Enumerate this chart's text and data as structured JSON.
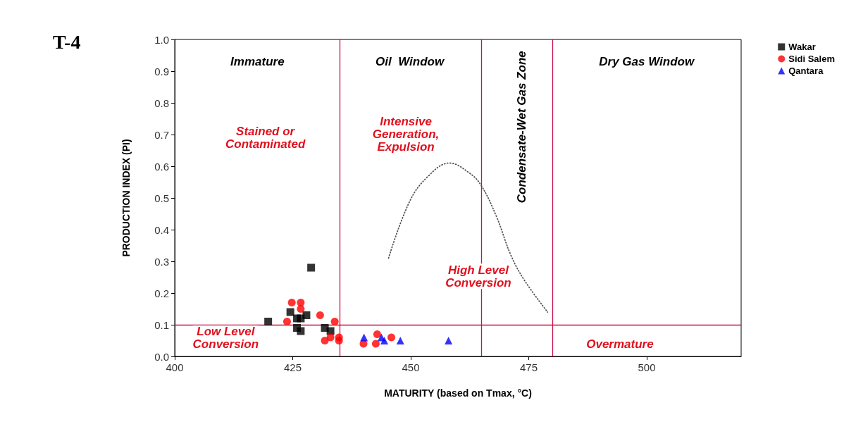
{
  "chart_data": {
    "type": "scatter",
    "title": "T-4",
    "xlabel": "MATURITY (based on Tmax, °C)",
    "ylabel": "PRODUCTION INDEX (PI)",
    "xlim": [
      400,
      520
    ],
    "xticks": [
      400,
      425,
      450,
      475,
      500
    ],
    "ylim": [
      0,
      1
    ],
    "yticks": [
      {
        "value": 0,
        "label": "0.0"
      },
      0.1,
      0.2,
      0.3,
      0.4,
      0.5,
      0.6,
      0.7,
      0.8,
      0.9,
      {
        "value": 1,
        "label": "1.0"
      }
    ],
    "grid": false,
    "legend": "top right",
    "series": [
      {
        "name": "Wakar",
        "color": "#000000",
        "marker": "square",
        "x": [
          428.9,
          419.8,
          424.5,
          425.9,
          426.7,
          427.9,
          425.9,
          426.7,
          431.8,
          433.0
        ],
        "values": [
          0.28,
          0.11,
          0.14,
          0.12,
          0.12,
          0.13,
          0.09,
          0.08,
          0.09,
          0.08
        ]
      },
      {
        "name": "Sidi Salem",
        "color": "#ff0000",
        "marker": "circle",
        "x": [
          424.8,
          426.7,
          426.7,
          423.8,
          430.8,
          433.9,
          431.8,
          433.0,
          434.8,
          434.8,
          440.0,
          442.9,
          442.6,
          445.9
        ],
        "values": [
          0.17,
          0.17,
          0.15,
          0.11,
          0.13,
          0.11,
          0.05,
          0.06,
          0.06,
          0.05,
          0.04,
          0.07,
          0.04,
          0.06
        ]
      },
      {
        "name": "Qantara",
        "color": "#0000ff",
        "marker": "triangle",
        "x": [
          440.1,
          443.8,
          444.4,
          447.8,
          458.0
        ],
        "values": [
          0.06,
          0.06,
          0.05,
          0.05,
          0.05
        ]
      },
      {
        "type": "line",
        "color": "#555555",
        "marker": "none",
        "line_style": "dotted",
        "x": [
          445.3,
          449.8,
          453.8,
          458.2,
          462.3,
          464.9,
          468.2,
          471.2,
          474.1,
          479.0
        ],
        "values": [
          0.31,
          0.49,
          0.57,
          0.61,
          0.58,
          0.54,
          0.44,
          0.32,
          0.24,
          0.14
        ]
      }
    ],
    "ref_lines": [
      {
        "axis": "x",
        "value": 435,
        "color": "#c8104a"
      },
      {
        "axis": "x",
        "value": 465,
        "color": "#c8104a"
      },
      {
        "axis": "x",
        "value": 480,
        "color": "#c8104a"
      },
      {
        "axis": "y",
        "value": 0.1,
        "color": "#c8104a"
      }
    ],
    "annotations": [
      "Immature",
      "Oil  Window",
      "Dry Gas Window",
      "Condensate-Wet Gas Zone",
      "Stained or\nContaminated",
      "Intensive\nGeneration,\nExpulsion",
      "High Level\nConversion",
      "Low Level\nConversion",
      "Overmature"
    ]
  }
}
